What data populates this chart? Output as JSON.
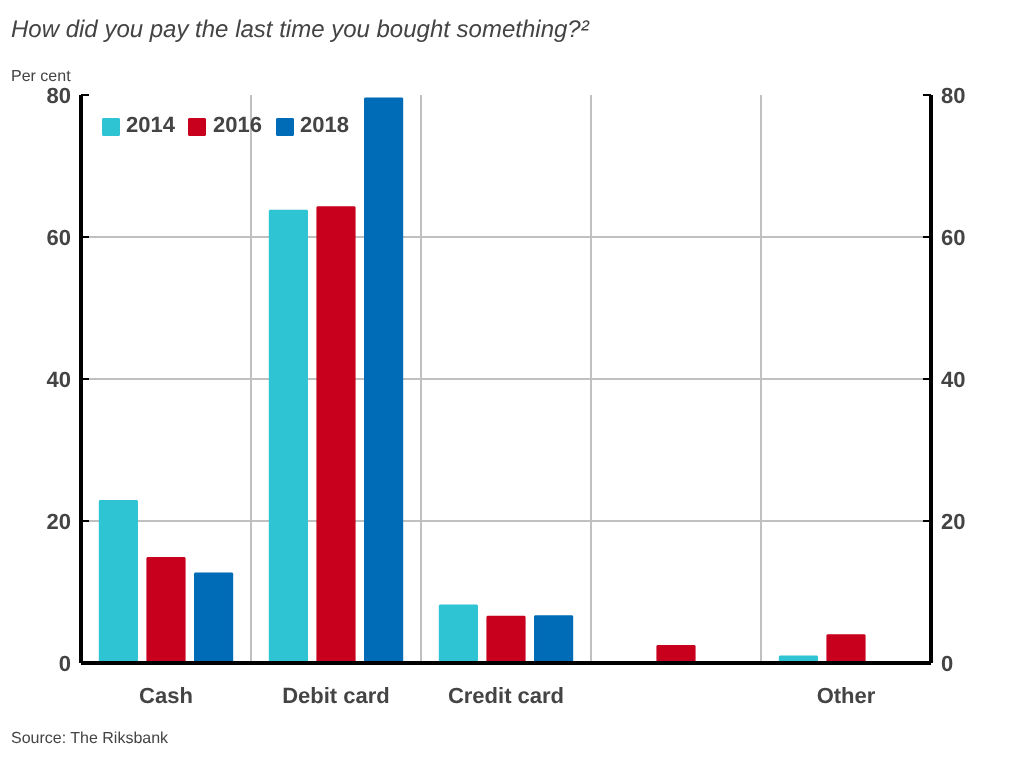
{
  "chart_data": {
    "type": "bar",
    "title": "How did you pay the last time you bought something?²",
    "ylabel": "Per cent",
    "categories": [
      "Cash",
      "Debit card",
      "Credit card",
      null,
      "Other"
    ],
    "series": [
      {
        "name": "2014",
        "color": "#2ec4d4",
        "values": [
          22.8,
          63.7,
          8.1,
          null,
          0.9
        ]
      },
      {
        "name": "2016",
        "color": "#c8001e",
        "values": [
          14.8,
          64.2,
          6.5,
          2.4,
          3.9
        ]
      },
      {
        "name": "2018",
        "color": "#006bb6",
        "values": [
          12.6,
          79.5,
          6.6,
          null,
          null
        ]
      }
    ],
    "ylim": [
      0,
      80
    ],
    "yticks": [
      0,
      20,
      40,
      60,
      80
    ],
    "y2lim": [
      0,
      80
    ],
    "y2ticks": [
      0,
      20,
      40,
      60,
      80
    ],
    "grid": true,
    "legend": "top left",
    "annotations": [
      "Source: The Riksbank"
    ]
  }
}
